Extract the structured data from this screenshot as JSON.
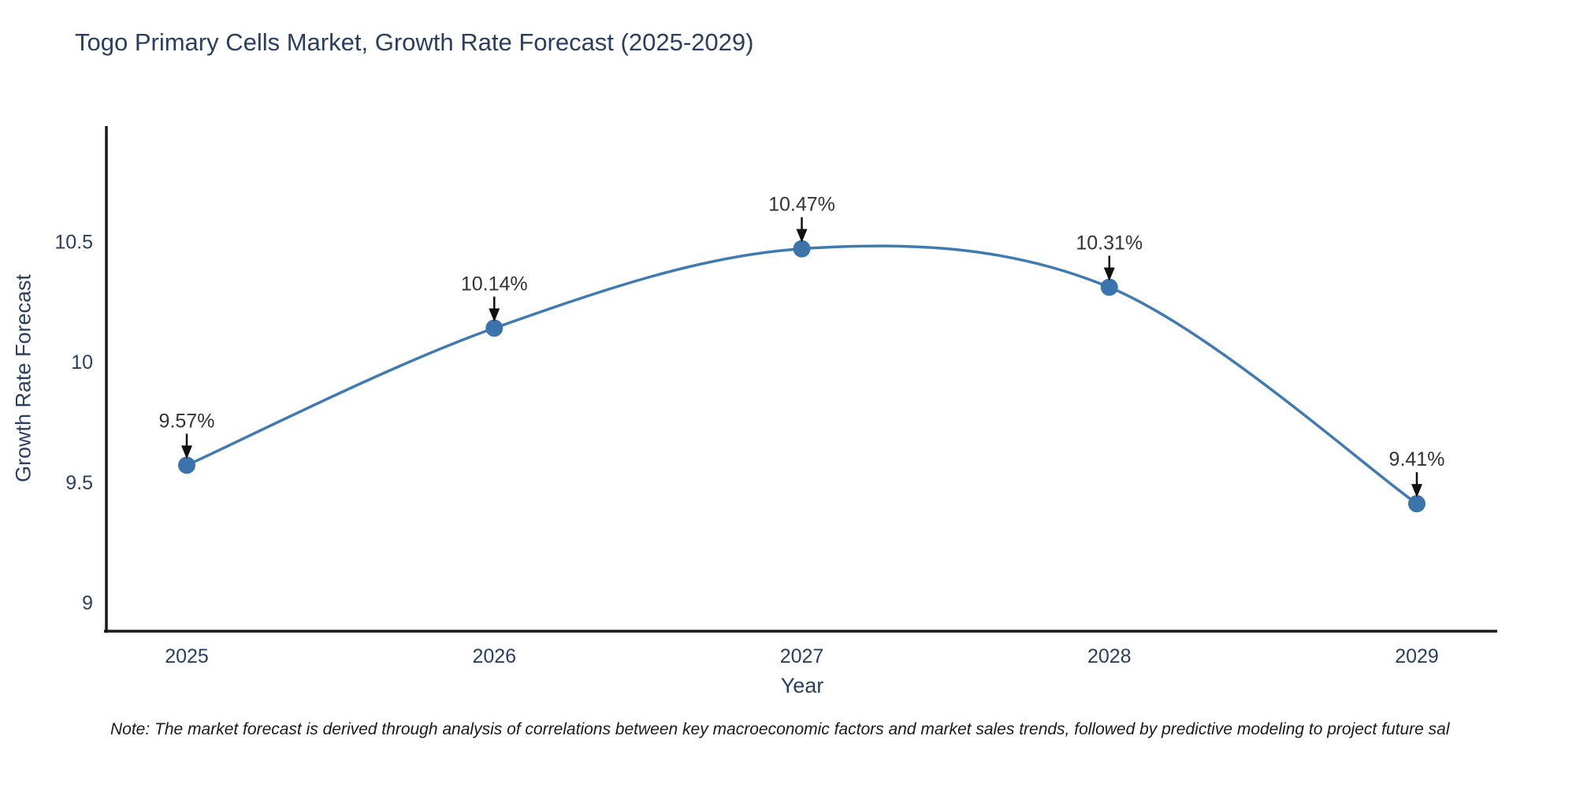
{
  "page": {
    "background": "#ffffff"
  },
  "chart_data": {
    "type": "line",
    "title": "Togo Primary Cells Market, Growth Rate Forecast (2025-2029)",
    "xlabel": "Year",
    "ylabel": "Growth Rate Forecast",
    "categories": [
      "2025",
      "2026",
      "2027",
      "2028",
      "2029"
    ],
    "values": [
      9.57,
      10.14,
      10.47,
      10.31,
      9.41
    ],
    "point_labels": [
      "9.57%",
      "10.14%",
      "10.47%",
      "10.31%",
      "9.41%"
    ],
    "yticks": [
      9,
      9.5,
      10,
      10.5
    ],
    "ytick_labels": [
      "9",
      "9.5",
      "10",
      "10.5"
    ],
    "ylim": [
      8.88,
      10.98
    ],
    "line_shape": "spline",
    "grid": false,
    "legend_position": "none",
    "annotations_have_arrows": true,
    "colors": {
      "line": "#3f7ab1",
      "marker": "#3a74ab",
      "axis_line": "#16181d",
      "tick_text": "#2a3f5f",
      "annotation_text": "#333333",
      "arrow": "#111111"
    }
  },
  "note": {
    "text": "Note: The market forecast is derived through analysis of correlations between key macroeconomic factors and market sales trends, followed by predictive modeling to project future sal"
  }
}
